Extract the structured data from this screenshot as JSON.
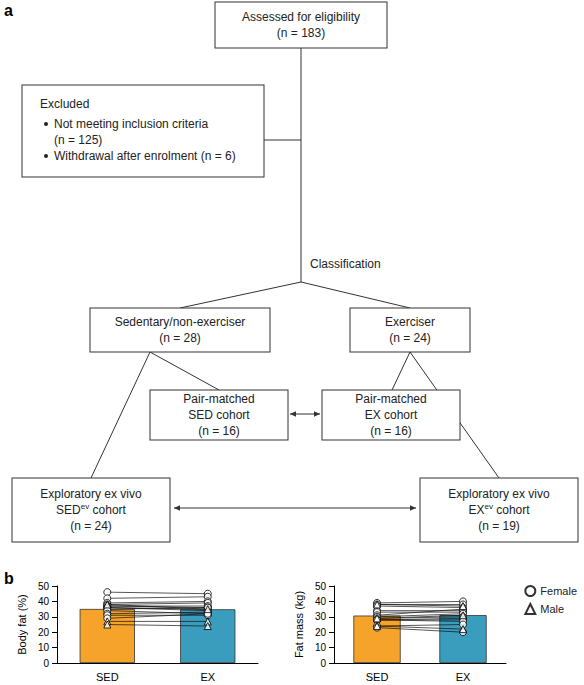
{
  "flowchart": {
    "panel_label": "a",
    "nodes": {
      "assessed": {
        "lines": [
          "Assessed for eligibility",
          "(n = 183)"
        ]
      },
      "sedentary": {
        "lines": [
          "Sedentary/non-exerciser",
          "(n = 28)"
        ]
      },
      "exerciser": {
        "lines": [
          "Exerciser",
          "(n = 24)"
        ]
      },
      "pm_sed": {
        "lines": [
          "Pair-matched",
          "SED cohort",
          "(n = 16)"
        ]
      },
      "pm_ex": {
        "lines": [
          "Pair-matched",
          "EX cohort",
          "(n = 16)"
        ]
      },
      "ev_sed": {
        "lines": [
          "Exploratory ex vivo",
          [
            {
              "t": "SED"
            },
            {
              "t": "ev",
              "sup": true
            },
            {
              "t": " cohort"
            }
          ],
          "(n = 24)"
        ]
      },
      "ev_ex": {
        "lines": [
          "Exploratory ex vivo",
          [
            {
              "t": "EX"
            },
            {
              "t": "ev",
              "sup": true
            },
            {
              "t": " cohort"
            }
          ],
          "(n = 19)"
        ]
      }
    },
    "excluded": {
      "title": "Excluded",
      "items": [
        {
          "lines": [
            "Not meeting inclusion criteria",
            "(n = 125)"
          ]
        },
        {
          "lines": [
            "Withdrawal after enrolment (n = 6)"
          ]
        }
      ]
    },
    "junction_label": "Classification"
  },
  "chart_panel_label": "b",
  "chart_data": [
    {
      "type": "bar",
      "categories": [
        "SED",
        "EX"
      ],
      "values": [
        35.1,
        34.9
      ],
      "colors": [
        "#f5a32b",
        "#3a9dbd"
      ],
      "ylabel": "Body fat (%)",
      "ylim": [
        0,
        50
      ],
      "yticks": [
        0,
        10,
        20,
        30,
        40,
        50
      ],
      "grid": false,
      "series": [
        {
          "name": "Female",
          "marker": "circle",
          "pairs": [
            [
              46,
              45
            ],
            [
              42,
              43
            ],
            [
              39,
              40
            ],
            [
              38,
              39
            ],
            [
              37,
              37
            ],
            [
              37,
              36
            ],
            [
              36,
              35
            ],
            [
              36,
              34
            ],
            [
              35,
              36
            ],
            [
              34,
              32
            ],
            [
              32,
              33
            ],
            [
              31,
              31
            ],
            [
              29,
              32
            ]
          ]
        },
        {
          "name": "Male",
          "marker": "triangle",
          "pairs": [
            [
              38,
              35
            ],
            [
              27,
              27
            ],
            [
              25,
              24
            ]
          ]
        }
      ]
    },
    {
      "type": "bar",
      "categories": [
        "SED",
        "EX"
      ],
      "values": [
        30.8,
        31.1
      ],
      "colors": [
        "#f5a32b",
        "#3a9dbd"
      ],
      "ylabel": "Fat mass (kg)",
      "ylim": [
        0,
        50
      ],
      "yticks": [
        0,
        10,
        20,
        30,
        40,
        50
      ],
      "grid": false,
      "legend": "right",
      "series": [
        {
          "name": "Female",
          "marker": "circle",
          "pairs": [
            [
              39,
              40
            ],
            [
              38,
              38
            ],
            [
              37,
              36
            ],
            [
              34,
              34
            ],
            [
              33,
              33
            ],
            [
              31,
              35
            ],
            [
              30,
              32
            ],
            [
              29,
              30
            ],
            [
              28,
              29
            ],
            [
              28,
              28
            ],
            [
              28,
              27
            ],
            [
              24,
              25
            ],
            [
              23,
              20
            ]
          ]
        },
        {
          "name": "Male",
          "marker": "triangle",
          "pairs": [
            [
              38,
              37
            ],
            [
              29,
              31
            ],
            [
              24,
              22
            ]
          ]
        }
      ]
    }
  ]
}
